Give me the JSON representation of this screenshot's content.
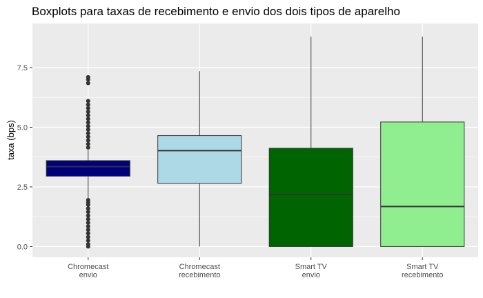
{
  "chart_data": {
    "type": "boxplot",
    "title": "Boxplots para taxas de recebimento e envio dos dois tipos de aparelho",
    "xlabel": "",
    "ylabel": "taxa (bps)",
    "ylim": [
      -0.45,
      9.35
    ],
    "yticks": [
      0.0,
      2.5,
      5.0,
      7.5
    ],
    "ytick_labels": [
      "0.0",
      "2.5",
      "5.0",
      "7.5"
    ],
    "grid": true,
    "legend": "none",
    "categories": [
      [
        "Chromecast",
        "envio"
      ],
      [
        "Chromecast",
        "recebimento"
      ],
      [
        "Smart TV",
        "envio"
      ],
      [
        "Smart TV",
        "recebimento"
      ]
    ],
    "boxes": [
      {
        "fill": "#00007f",
        "whisker_low": 2.0,
        "q1": 2.95,
        "median": 3.35,
        "q3": 3.6,
        "whisker_high": 4.05,
        "outliers_low": [
          1.95,
          1.85,
          1.75,
          1.6,
          1.45,
          1.3,
          1.15,
          1.0,
          0.85,
          0.7,
          0.55,
          0.4,
          0.25,
          0.1,
          0.0
        ],
        "outliers_high": [
          4.15,
          4.3,
          4.45,
          4.6,
          4.75,
          4.9,
          5.05,
          5.2,
          5.35,
          5.5,
          5.65,
          5.8,
          5.95,
          6.1,
          6.85,
          7.0,
          7.1
        ]
      },
      {
        "fill": "#add8e6",
        "whisker_low": 0.0,
        "q1": 2.65,
        "median": 4.02,
        "q3": 4.65,
        "whisker_high": 7.35,
        "outliers_low": [],
        "outliers_high": []
      },
      {
        "fill": "#006400",
        "whisker_low": 0.0,
        "q1": 0.0,
        "median": 2.18,
        "q3": 4.12,
        "whisker_high": 8.8,
        "outliers_low": [],
        "outliers_high": []
      },
      {
        "fill": "#90ee90",
        "whisker_low": 0.0,
        "q1": 0.0,
        "median": 1.68,
        "q3": 5.22,
        "whisker_high": 8.8,
        "outliers_low": [],
        "outliers_high": []
      }
    ],
    "colors": {
      "panel": "#ebebeb",
      "grid_major": "#ffffff",
      "box_outline": "#333333",
      "whisker": "#333333",
      "tick_text": "#4d4d4d"
    }
  }
}
